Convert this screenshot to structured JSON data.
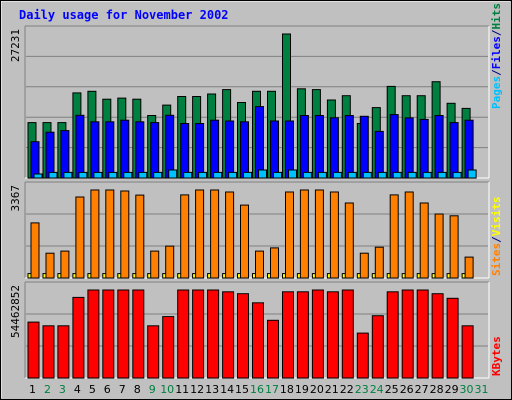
{
  "chart_data": {
    "type": "bar",
    "title": "Daily usage for November 2002",
    "categories": [
      "1",
      "2",
      "3",
      "4",
      "5",
      "6",
      "7",
      "8",
      "9",
      "10",
      "11",
      "12",
      "13",
      "14",
      "15",
      "16",
      "17",
      "18",
      "19",
      "20",
      "21",
      "22",
      "23",
      "24",
      "25",
      "26",
      "27",
      "28",
      "29",
      "30",
      "31"
    ],
    "weekend_days": [
      "2",
      "3",
      "9",
      "10",
      "16",
      "17",
      "23",
      "24",
      "30",
      "31"
    ],
    "colors": {
      "hits": "#008040",
      "files": "#0000ff",
      "pages": "#00c0ff",
      "visits": "#ffff00",
      "sites": "#ff8000",
      "kbytes": "#ff0000",
      "weekday_label": "#000000",
      "weekend_label": "#008040",
      "title": "#0000ff"
    },
    "panels": [
      {
        "id": "hits-files-pages",
        "max_label": "27231",
        "ylim": [
          0,
          27231
        ],
        "legend": [
          {
            "text": "Hits",
            "color": "#008040"
          },
          {
            "text": "Files",
            "color": "#0000ff"
          },
          {
            "text": "Pages",
            "color": "#00c0ff"
          }
        ],
        "separator_color": "#000080",
        "series": [
          {
            "name": "Hits",
            "color": "#008040",
            "values": [
              10470,
              10470,
              10470,
              16090,
              16400,
              14900,
              15100,
              14900,
              11820,
              13790,
              15420,
              15420,
              15880,
              16710,
              14280,
              16400,
              16400,
              27231,
              16860,
              16710,
              14750,
              15570,
              10310,
              13320,
              17320,
              15570,
              15570,
              18220,
              14120,
              13170,
              0
            ]
          },
          {
            "name": "Files",
            "color": "#0000ff",
            "values": [
              6870,
              8660,
              8970,
              11850,
              10630,
              10630,
              10930,
              10630,
              10470,
              11850,
              10310,
              10310,
              10930,
              10780,
              10630,
              13510,
              10780,
              10780,
              11820,
              11820,
              11390,
              11820,
              11660,
              8810,
              11980,
              11360,
              11080,
              11820,
              10470,
              10930,
              0
            ]
          },
          {
            "name": "Pages",
            "color": "#00c0ff",
            "values": [
              760,
              1060,
              1060,
              1060,
              1060,
              1060,
              1060,
              1060,
              1060,
              1520,
              1060,
              1060,
              1060,
              1060,
              1060,
              1520,
              1060,
              1520,
              1060,
              1060,
              1060,
              1060,
              1060,
              1060,
              1060,
              1060,
              1060,
              1060,
              1060,
              1520,
              0
            ]
          }
        ]
      },
      {
        "id": "visits-sites",
        "max_label": "3367",
        "ylim": [
          0,
          3367
        ],
        "legend": [
          {
            "text": "Visits",
            "color": "#ffff00"
          },
          {
            "text": "Sites",
            "color": "#ff8000"
          }
        ],
        "separator_color": "#000080",
        "series": [
          {
            "name": "Visits",
            "color": "#ffff00",
            "values": [
              170,
              170,
              170,
              170,
              170,
              170,
              170,
              170,
              170,
              170,
              170,
              170,
              170,
              170,
              170,
              170,
              170,
              170,
              170,
              170,
              170,
              170,
              170,
              170,
              170,
              170,
              170,
              170,
              170,
              170,
              0
            ]
          },
          {
            "name": "Sites",
            "color": "#ff8000",
            "values": [
              2110,
              950,
              1030,
              3100,
              3367,
              3367,
              3330,
              3170,
              1030,
              1220,
              3180,
              3367,
              3367,
              3290,
              2790,
              1030,
              1150,
              3290,
              3367,
              3367,
              3290,
              2870,
              950,
              1180,
              3180,
              3290,
              2870,
              2450,
              2380,
              800,
              0
            ]
          }
        ]
      },
      {
        "id": "kbytes",
        "max_label": "54462852",
        "ylim": [
          0,
          54462852
        ],
        "legend": [
          {
            "text": "KBytes",
            "color": "#ff0000"
          }
        ],
        "series": [
          {
            "name": "KBytes",
            "color": "#ff0000",
            "values": [
              34570000,
              32300000,
              32300000,
              49890000,
              54462852,
              54462852,
              54462852,
              54462852,
              32300000,
              37970000,
              54462852,
              54462852,
              54462852,
              53330000,
              52190000,
              46520000,
              35700000,
              53330000,
              53330000,
              54462852,
              53330000,
              54462852,
              27760000,
              38540000,
              53330000,
              54462852,
              54462852,
              52190000,
              49350000,
              32300000,
              0
            ]
          }
        ]
      }
    ]
  }
}
